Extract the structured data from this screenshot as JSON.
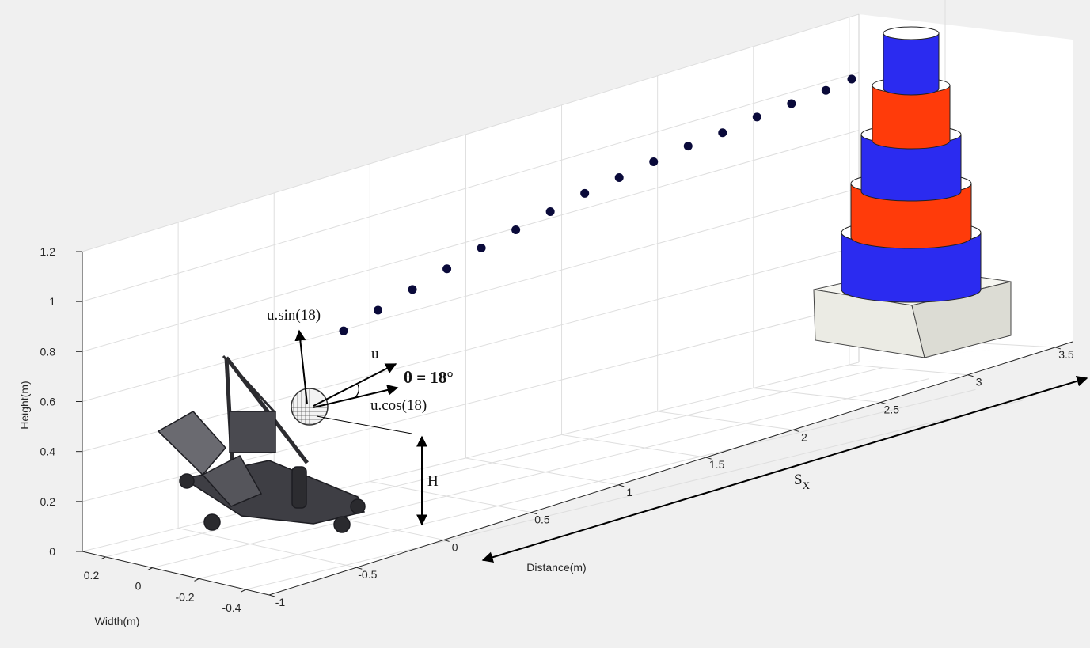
{
  "chart_data": {
    "type": "scatter",
    "subtype": "3d-trajectory",
    "title": "",
    "xlabel": "Distance(m)",
    "ylabel": "Width(m)",
    "zlabel": "Height(m)",
    "xlim": [
      -1,
      3.6
    ],
    "ylim": [
      -0.5,
      0.3
    ],
    "zlim": [
      0,
      1.2
    ],
    "x_ticks": [
      "-1",
      "-0.5",
      "0",
      "0.5",
      "1",
      "1.5",
      "2",
      "2.5",
      "3",
      "3.5"
    ],
    "y_ticks": [
      "0.2",
      "0",
      "-0.2",
      "-0.4"
    ],
    "z_ticks": [
      "0",
      "0.2",
      "0.4",
      "0.6",
      "0.8",
      "1",
      "1.2"
    ],
    "grid": true,
    "series": [
      {
        "marker": "filled-circle",
        "color": "#0a0a3a",
        "x": [
          0.1,
          0.3,
          0.5,
          0.7,
          0.9,
          1.1,
          1.3,
          1.5,
          1.7,
          1.9,
          2.1,
          2.3,
          2.5,
          2.7,
          2.9,
          3.05
        ],
        "z": [
          0.67,
          0.72,
          0.77,
          0.82,
          0.87,
          0.91,
          0.95,
          0.99,
          1.02,
          1.05,
          1.08,
          1.1,
          1.13,
          1.15,
          1.17,
          1.19
        ]
      }
    ],
    "target": {
      "tiers": [
        {
          "color": "#2b2bf0"
        },
        {
          "color": "#ff3b0a"
        },
        {
          "color": "#2b2bf0"
        },
        {
          "color": "#ff3b0a"
        },
        {
          "color": "#2b2bf0"
        }
      ],
      "base_color": "#ebebe4"
    },
    "annotations": {
      "vertical_component": "u.sin(18)",
      "velocity": "u",
      "angle": "θ = 18°",
      "horizontal_component": "u.cos(18)",
      "height": "H",
      "range_symbol": "S",
      "range_subscript": "X"
    }
  }
}
